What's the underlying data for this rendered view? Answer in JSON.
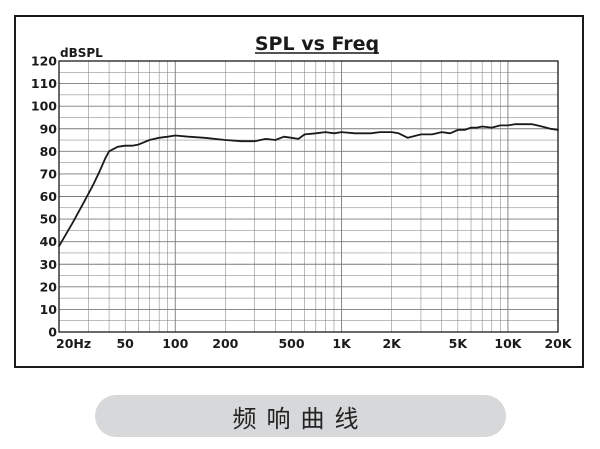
{
  "chart_data": {
    "type": "line",
    "title": "SPL vs Freq",
    "ylabel": "dBSPL",
    "xlabel": "",
    "x_scale": "log",
    "xlim": [
      20,
      20000
    ],
    "ylim": [
      0,
      120
    ],
    "grid": true,
    "x_tick_values": [
      20,
      50,
      100,
      200,
      500,
      1000,
      2000,
      5000,
      10000,
      20000
    ],
    "x_tick_labels": [
      "20Hz",
      "50",
      "100",
      "200",
      "500",
      "1K",
      "2K",
      "5K",
      "10K",
      "20K"
    ],
    "y_ticks": [
      0,
      10,
      20,
      30,
      40,
      50,
      60,
      70,
      80,
      90,
      100,
      110,
      120
    ],
    "series": [
      {
        "name": "",
        "color": "#1a1a1a",
        "x": [
          20,
          24,
          28,
          32,
          35,
          38,
          40,
          45,
          50,
          55,
          60,
          70,
          80,
          90,
          100,
          120,
          150,
          200,
          250,
          300,
          350,
          400,
          450,
          500,
          550,
          600,
          700,
          800,
          900,
          1000,
          1200,
          1500,
          1700,
          2000,
          2200,
          2500,
          3000,
          3500,
          4000,
          4500,
          5000,
          5500,
          6000,
          6500,
          7000,
          8000,
          9000,
          10000,
          11000,
          12000,
          13000,
          14000,
          15000,
          16000,
          18000,
          20000
        ],
        "y": [
          38,
          48,
          57,
          65,
          71,
          77,
          80,
          82,
          82.5,
          82.5,
          83,
          85,
          86,
          86.5,
          87,
          86.5,
          86,
          85,
          84.5,
          84.5,
          85.5,
          85,
          86.5,
          86,
          85.5,
          87.5,
          88,
          88.5,
          88,
          88.5,
          88,
          88,
          88.5,
          88.5,
          88,
          86,
          87.5,
          87.5,
          88.5,
          88,
          89.5,
          89.5,
          90.5,
          90.5,
          91,
          90.5,
          91.5,
          91.5,
          92,
          92,
          92,
          92,
          91.5,
          91,
          90,
          89.5
        ]
      }
    ]
  },
  "caption": "频响曲线"
}
